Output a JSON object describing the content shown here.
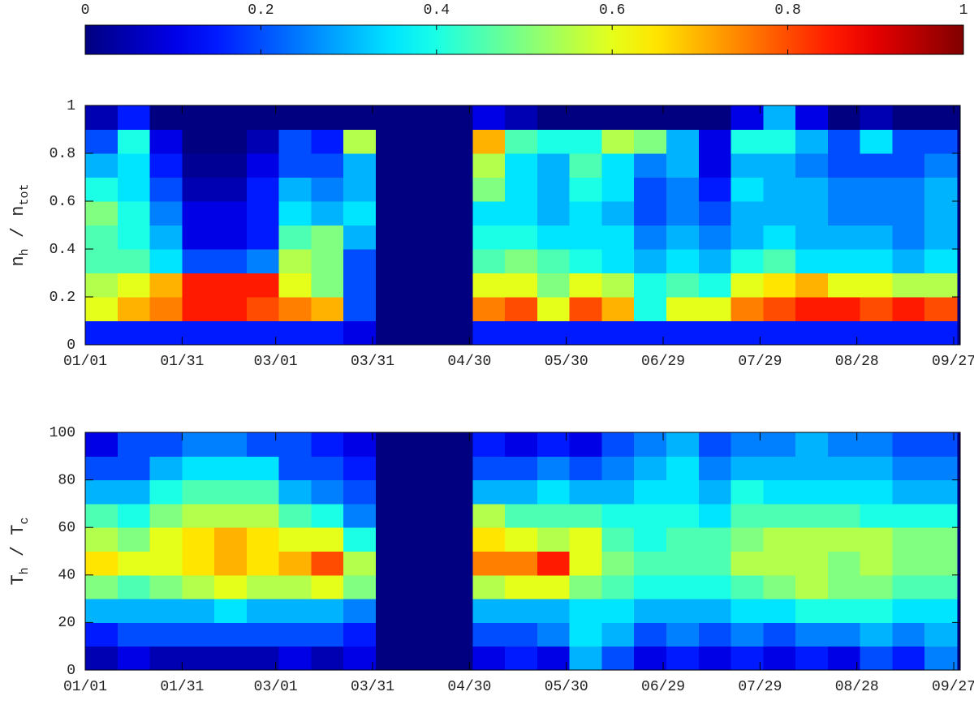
{
  "chart_data": [
    {
      "type": "heatmap",
      "colormap": "jet",
      "colorbar": {
        "lim": [
          0,
          1
        ],
        "ticks": [
          0,
          0.2,
          0.4,
          0.6,
          0.8,
          1
        ]
      },
      "ylabel": [
        {
          "text": "n"
        },
        {
          "text": "h",
          "subscript": true
        },
        {
          "text": " / n"
        },
        {
          "text": "tot",
          "subscript": true
        }
      ],
      "xlim": [
        0,
        271
      ],
      "xticks": [
        {
          "value": 0,
          "label": "01/01"
        },
        {
          "value": 30,
          "label": "01/31"
        },
        {
          "value": 59,
          "label": "03/01"
        },
        {
          "value": 89,
          "label": "03/31"
        },
        {
          "value": 119,
          "label": "04/30"
        },
        {
          "value": 149,
          "label": "05/30"
        },
        {
          "value": 179,
          "label": "06/29"
        },
        {
          "value": 209,
          "label": "07/29"
        },
        {
          "value": 239,
          "label": "08/28"
        },
        {
          "value": 269,
          "label": "09/27"
        }
      ],
      "ylim": [
        0,
        1
      ],
      "yticks": [
        0,
        0.2,
        0.4,
        0.6,
        0.8,
        1
      ],
      "xbins": [
        0,
        10,
        20,
        30,
        40,
        50,
        60,
        70,
        80,
        90,
        100,
        110,
        120,
        130,
        140,
        150,
        160,
        170,
        180,
        190,
        200,
        210,
        220,
        230,
        240,
        250,
        260,
        270
      ],
      "ybins": [
        0,
        0.1,
        0.2,
        0.3,
        0.4,
        0.5,
        0.6,
        0.7,
        0.8,
        0.9,
        1
      ],
      "values": [
        [
          0.15,
          0.15,
          0.15,
          0.15,
          0.15,
          0.15,
          0.15,
          0.15,
          0.1,
          0,
          0,
          0,
          0.15,
          0.15,
          0.15,
          0.15,
          0.15,
          0.15,
          0.15,
          0.15,
          0.15,
          0.15,
          0.15,
          0.15,
          0.15,
          0.15,
          0.15
        ],
        [
          0.6,
          0.7,
          0.75,
          0.85,
          0.85,
          0.8,
          0.75,
          0.7,
          0.2,
          0,
          0,
          0,
          0.75,
          0.8,
          0.6,
          0.8,
          0.7,
          0.4,
          0.6,
          0.6,
          0.75,
          0.8,
          0.85,
          0.85,
          0.8,
          0.85,
          0.8
        ],
        [
          0.55,
          0.6,
          0.7,
          0.85,
          0.85,
          0.85,
          0.6,
          0.5,
          0.2,
          0,
          0,
          0,
          0.6,
          0.6,
          0.5,
          0.6,
          0.55,
          0.4,
          0.45,
          0.4,
          0.6,
          0.65,
          0.7,
          0.6,
          0.6,
          0.55,
          0.55
        ],
        [
          0.45,
          0.45,
          0.35,
          0.2,
          0.2,
          0.25,
          0.55,
          0.5,
          0.2,
          0,
          0,
          0,
          0.45,
          0.5,
          0.45,
          0.4,
          0.35,
          0.3,
          0.35,
          0.3,
          0.4,
          0.45,
          0.35,
          0.35,
          0.35,
          0.3,
          0.35
        ],
        [
          0.45,
          0.4,
          0.3,
          0.1,
          0.1,
          0.15,
          0.45,
          0.5,
          0.3,
          0,
          0,
          0,
          0.4,
          0.4,
          0.35,
          0.35,
          0.35,
          0.25,
          0.3,
          0.25,
          0.3,
          0.35,
          0.3,
          0.3,
          0.3,
          0.25,
          0.3
        ],
        [
          0.5,
          0.4,
          0.25,
          0.1,
          0.1,
          0.15,
          0.35,
          0.3,
          0.35,
          0,
          0,
          0,
          0.35,
          0.35,
          0.3,
          0.35,
          0.3,
          0.2,
          0.25,
          0.2,
          0.3,
          0.3,
          0.3,
          0.25,
          0.25,
          0.25,
          0.3
        ],
        [
          0.4,
          0.35,
          0.2,
          0.05,
          0.05,
          0.15,
          0.3,
          0.25,
          0.3,
          0,
          0,
          0,
          0.5,
          0.35,
          0.3,
          0.4,
          0.35,
          0.2,
          0.25,
          0.15,
          0.35,
          0.3,
          0.3,
          0.25,
          0.25,
          0.25,
          0.3
        ],
        [
          0.3,
          0.35,
          0.15,
          0.02,
          0.02,
          0.1,
          0.2,
          0.2,
          0.3,
          0,
          0,
          0,
          0.55,
          0.35,
          0.3,
          0.45,
          0.35,
          0.25,
          0.3,
          0.1,
          0.3,
          0.3,
          0.25,
          0.2,
          0.2,
          0.2,
          0.25
        ],
        [
          0.2,
          0.4,
          0.1,
          0,
          0,
          0.05,
          0.2,
          0.15,
          0.55,
          0,
          0,
          0,
          0.7,
          0.45,
          0.4,
          0.4,
          0.55,
          0.5,
          0.3,
          0.1,
          0.4,
          0.4,
          0.3,
          0.2,
          0.35,
          0.2,
          0.2
        ],
        [
          0.05,
          0.15,
          0,
          0,
          0,
          0,
          0,
          0,
          0,
          0,
          0,
          0,
          0.1,
          0.05,
          0,
          0,
          0,
          0,
          0,
          0,
          0.1,
          0.3,
          0.1,
          0,
          0.05,
          0,
          0
        ]
      ]
    },
    {
      "type": "heatmap",
      "colormap": "jet",
      "ylabel": [
        {
          "text": "T"
        },
        {
          "text": "h",
          "subscript": true
        },
        {
          "text": " / T"
        },
        {
          "text": "c",
          "subscript": true
        }
      ],
      "xlim": [
        0,
        271
      ],
      "xticks": [
        {
          "value": 0,
          "label": "01/01"
        },
        {
          "value": 30,
          "label": "01/31"
        },
        {
          "value": 59,
          "label": "03/01"
        },
        {
          "value": 89,
          "label": "03/31"
        },
        {
          "value": 119,
          "label": "04/30"
        },
        {
          "value": 149,
          "label": "05/30"
        },
        {
          "value": 179,
          "label": "06/29"
        },
        {
          "value": 209,
          "label": "07/29"
        },
        {
          "value": 239,
          "label": "08/28"
        },
        {
          "value": 269,
          "label": "09/27"
        }
      ],
      "ylim": [
        0,
        100
      ],
      "yticks": [
        0,
        20,
        40,
        60,
        80,
        100
      ],
      "xbins": [
        0,
        10,
        20,
        30,
        40,
        50,
        60,
        70,
        80,
        90,
        100,
        110,
        120,
        130,
        140,
        150,
        160,
        170,
        180,
        190,
        200,
        210,
        220,
        230,
        240,
        250,
        260,
        270
      ],
      "ybins": [
        0,
        10,
        20,
        30,
        40,
        50,
        60,
        70,
        80,
        90,
        100
      ],
      "values": [
        [
          0.05,
          0.1,
          0.05,
          0.05,
          0.05,
          0.05,
          0.1,
          0.05,
          0.1,
          0,
          0,
          0,
          0.1,
          0.15,
          0.1,
          0.3,
          0.2,
          0.1,
          0.15,
          0.1,
          0.15,
          0.1,
          0.15,
          0.1,
          0.2,
          0.15,
          0.25
        ],
        [
          0.15,
          0.2,
          0.2,
          0.2,
          0.2,
          0.2,
          0.2,
          0.2,
          0.15,
          0,
          0,
          0,
          0.2,
          0.2,
          0.25,
          0.35,
          0.3,
          0.2,
          0.25,
          0.2,
          0.25,
          0.2,
          0.25,
          0.25,
          0.3,
          0.25,
          0.3
        ],
        [
          0.3,
          0.3,
          0.3,
          0.3,
          0.35,
          0.3,
          0.3,
          0.3,
          0.25,
          0,
          0,
          0,
          0.3,
          0.3,
          0.3,
          0.35,
          0.35,
          0.3,
          0.3,
          0.3,
          0.35,
          0.35,
          0.4,
          0.4,
          0.4,
          0.35,
          0.35
        ],
        [
          0.5,
          0.45,
          0.5,
          0.55,
          0.6,
          0.55,
          0.55,
          0.6,
          0.5,
          0,
          0,
          0,
          0.55,
          0.6,
          0.6,
          0.5,
          0.45,
          0.4,
          0.4,
          0.4,
          0.45,
          0.5,
          0.55,
          0.5,
          0.5,
          0.45,
          0.45
        ],
        [
          0.65,
          0.6,
          0.6,
          0.65,
          0.7,
          0.65,
          0.7,
          0.8,
          0.55,
          0,
          0,
          0,
          0.75,
          0.75,
          0.85,
          0.6,
          0.5,
          0.45,
          0.45,
          0.45,
          0.55,
          0.55,
          0.55,
          0.5,
          0.55,
          0.5,
          0.5
        ],
        [
          0.55,
          0.5,
          0.6,
          0.65,
          0.7,
          0.65,
          0.6,
          0.6,
          0.4,
          0,
          0,
          0,
          0.65,
          0.6,
          0.55,
          0.6,
          0.45,
          0.4,
          0.45,
          0.45,
          0.5,
          0.55,
          0.55,
          0.55,
          0.55,
          0.5,
          0.5
        ],
        [
          0.45,
          0.4,
          0.5,
          0.55,
          0.55,
          0.55,
          0.45,
          0.4,
          0.25,
          0,
          0,
          0,
          0.55,
          0.45,
          0.45,
          0.45,
          0.4,
          0.4,
          0.4,
          0.35,
          0.45,
          0.45,
          0.45,
          0.45,
          0.4,
          0.4,
          0.4
        ],
        [
          0.3,
          0.3,
          0.4,
          0.45,
          0.45,
          0.45,
          0.3,
          0.25,
          0.2,
          0,
          0,
          0,
          0.3,
          0.3,
          0.35,
          0.3,
          0.3,
          0.35,
          0.35,
          0.3,
          0.4,
          0.35,
          0.35,
          0.35,
          0.35,
          0.3,
          0.3
        ],
        [
          0.2,
          0.2,
          0.3,
          0.35,
          0.35,
          0.35,
          0.2,
          0.2,
          0.15,
          0,
          0,
          0,
          0.2,
          0.2,
          0.25,
          0.2,
          0.25,
          0.3,
          0.35,
          0.25,
          0.3,
          0.3,
          0.3,
          0.3,
          0.3,
          0.25,
          0.25
        ],
        [
          0.1,
          0.2,
          0.2,
          0.25,
          0.25,
          0.2,
          0.2,
          0.15,
          0.1,
          0,
          0,
          0,
          0.15,
          0.1,
          0.15,
          0.1,
          0.2,
          0.25,
          0.3,
          0.2,
          0.25,
          0.25,
          0.3,
          0.25,
          0.25,
          0.2,
          0.2
        ]
      ]
    }
  ]
}
